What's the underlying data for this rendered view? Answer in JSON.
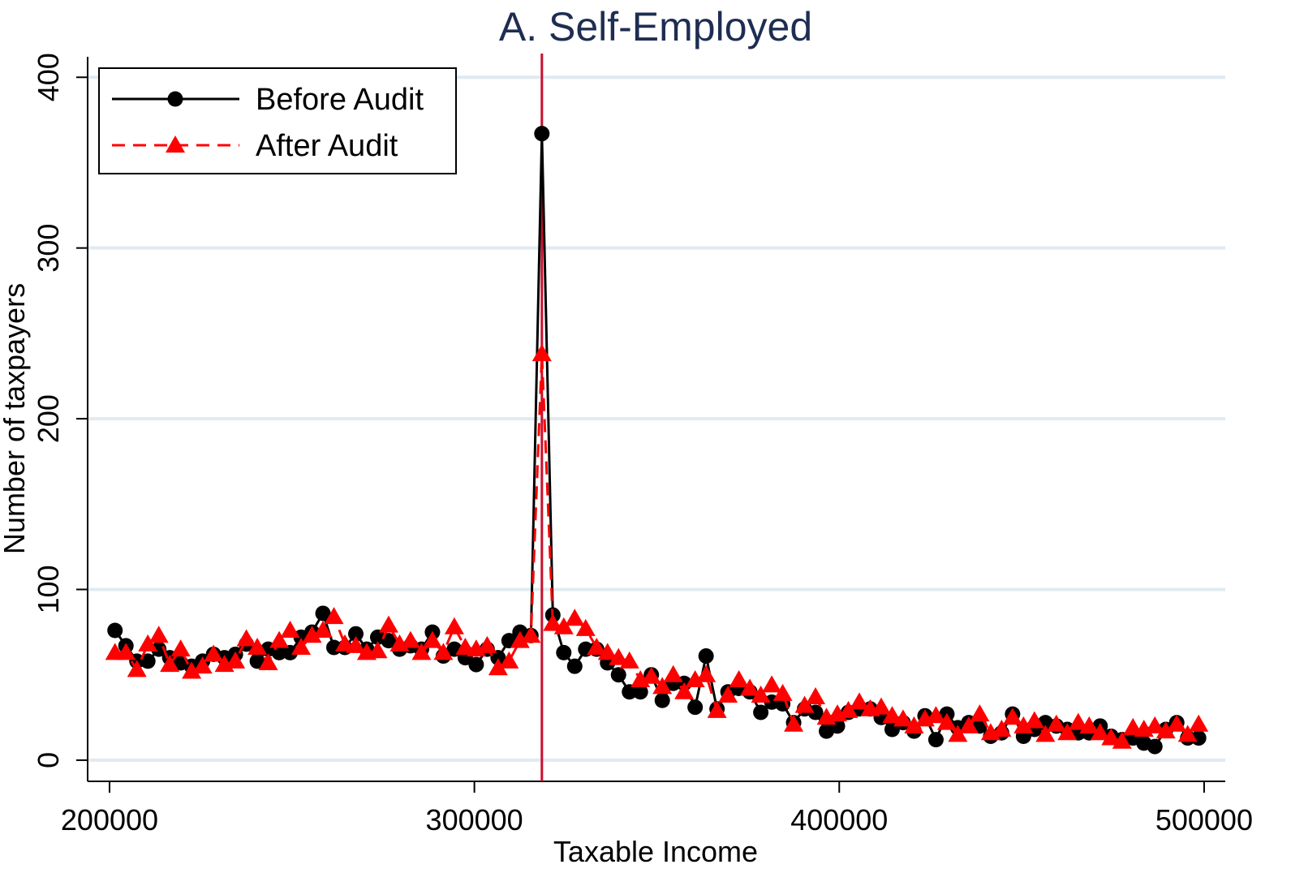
{
  "chart_data": {
    "type": "line",
    "title": "A. Self-Employed",
    "x_label": "Taxable Income",
    "y_label": "Number of taxpayers",
    "x": [
      201500,
      204500,
      207500,
      210500,
      213500,
      216500,
      219500,
      222500,
      225500,
      228500,
      231500,
      234500,
      237500,
      240500,
      243500,
      246500,
      249500,
      252500,
      255500,
      258500,
      261500,
      264500,
      267500,
      270500,
      273500,
      276500,
      279500,
      282500,
      285500,
      288500,
      291500,
      294500,
      297500,
      300500,
      303500,
      306500,
      309500,
      312500,
      315500,
      318500,
      321500,
      324500,
      327500,
      330500,
      333500,
      336500,
      339500,
      342500,
      345500,
      348500,
      351500,
      354500,
      357500,
      360500,
      363500,
      366500,
      369500,
      372500,
      375500,
      378500,
      381500,
      384500,
      387500,
      390500,
      393500,
      396500,
      399500,
      402500,
      405500,
      408500,
      411500,
      414500,
      417500,
      420500,
      423500,
      426500,
      429500,
      432500,
      435500,
      438500,
      441500,
      444500,
      447500,
      450500,
      453500,
      456500,
      459500,
      462500,
      465500,
      468500,
      471500,
      474500,
      477500,
      480500,
      483500,
      486500,
      489500,
      492500,
      495500,
      498500
    ],
    "series": [
      {
        "name": "Before Audit",
        "color": "#000000",
        "marker": "circle",
        "dash": false,
        "values": [
          76,
          67,
          58,
          58,
          65,
          60,
          57,
          55,
          58,
          62,
          60,
          62,
          68,
          58,
          65,
          63,
          63,
          72,
          75,
          86,
          66,
          66,
          74,
          65,
          72,
          70,
          65,
          67,
          65,
          75,
          61,
          65,
          60,
          56,
          65,
          60,
          70,
          75,
          73,
          367,
          85,
          63,
          55,
          65,
          65,
          57,
          50,
          40,
          40,
          50,
          35,
          45,
          45,
          31,
          61,
          30,
          40,
          42,
          40,
          28,
          34,
          33,
          22,
          30,
          28,
          17,
          20,
          28,
          30,
          30,
          25,
          18,
          22,
          17,
          26,
          12,
          27,
          19,
          22,
          20,
          14,
          16,
          27,
          14,
          18,
          22,
          20,
          18,
          16,
          16,
          20,
          14,
          12,
          13,
          10,
          8,
          18,
          22,
          13,
          13
        ]
      },
      {
        "name": "After Audit",
        "color": "#ff0000",
        "marker": "triangle",
        "dash": true,
        "values": [
          63,
          63,
          53,
          68,
          73,
          56,
          65,
          52,
          55,
          62,
          56,
          58,
          71,
          66,
          57,
          70,
          76,
          66,
          73,
          76,
          84,
          68,
          67,
          63,
          64,
          79,
          68,
          70,
          63,
          70,
          63,
          78,
          66,
          65,
          67,
          54,
          58,
          70,
          73,
          238,
          80,
          78,
          83,
          77,
          66,
          63,
          60,
          58,
          47,
          49,
          43,
          50,
          40,
          47,
          50,
          29,
          38,
          47,
          42,
          38,
          44,
          39,
          21,
          32,
          37,
          25,
          27,
          29,
          34,
          30,
          31,
          26,
          24,
          20,
          24,
          26,
          22,
          15,
          20,
          27,
          16,
          18,
          25,
          20,
          23,
          15,
          21,
          16,
          22,
          20,
          16,
          13,
          11,
          19,
          18,
          20,
          17,
          21,
          15,
          21
        ]
      }
    ],
    "vline": {
      "value": 318500,
      "color": "#c8102e"
    },
    "xlim": [
      194000,
      505800
    ],
    "ylim": [
      -12.4,
      412
    ],
    "xticks": [
      200000,
      300000,
      400000,
      500000
    ],
    "yticks": [
      0,
      100,
      200,
      300,
      400
    ],
    "grid": true,
    "legend": "top-left"
  }
}
